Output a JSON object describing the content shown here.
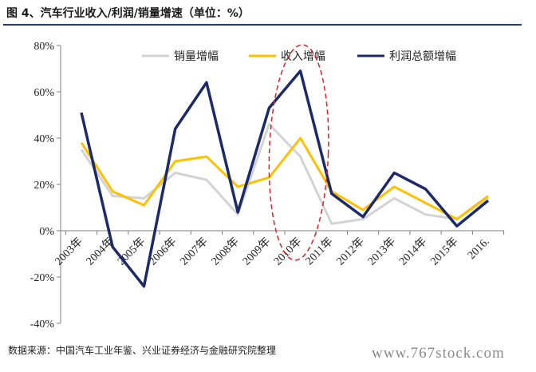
{
  "header": {
    "title": "图 4、汽车行业收入/利润/销量增速（单位：%）"
  },
  "footer": {
    "source": "数据来源：中国汽车工业年鉴、兴业证券经济与金融研究院整理",
    "watermark": "www.767stock.com"
  },
  "chart_data": {
    "type": "line",
    "categories": [
      "2003年",
      "2004年",
      "2005年",
      "2006年",
      "2007年",
      "2008年",
      "2009年",
      "2010年",
      "2011年",
      "2012年",
      "2013年",
      "2014年",
      "2015年",
      "2016."
    ],
    "ytick_labels": [
      "-40%",
      "-20%",
      "0%",
      "20%",
      "40%",
      "60%",
      "80%"
    ],
    "ylim": [
      -40,
      80
    ],
    "grid": false,
    "legend_position": "top-right",
    "series": [
      {
        "name": "销量增幅",
        "color": "#d3d3d3",
        "values": [
          35,
          15,
          14,
          25,
          22,
          7,
          46,
          32,
          3,
          5,
          14,
          7,
          5,
          14
        ]
      },
      {
        "name": "收入增幅",
        "color": "#ffc000",
        "values": [
          38,
          17,
          11,
          30,
          32,
          19,
          23,
          40,
          17,
          9,
          19,
          12,
          5,
          15
        ]
      },
      {
        "name": "利润总额增幅",
        "color": "#1b2a6b",
        "values": [
          51,
          -7,
          -24,
          44,
          64,
          8,
          53,
          69,
          16,
          6,
          25,
          18,
          2,
          13
        ]
      }
    ],
    "annotations": [
      {
        "type": "dashed-ellipse",
        "color": "#e02020",
        "around_category": "2010年"
      }
    ]
  }
}
